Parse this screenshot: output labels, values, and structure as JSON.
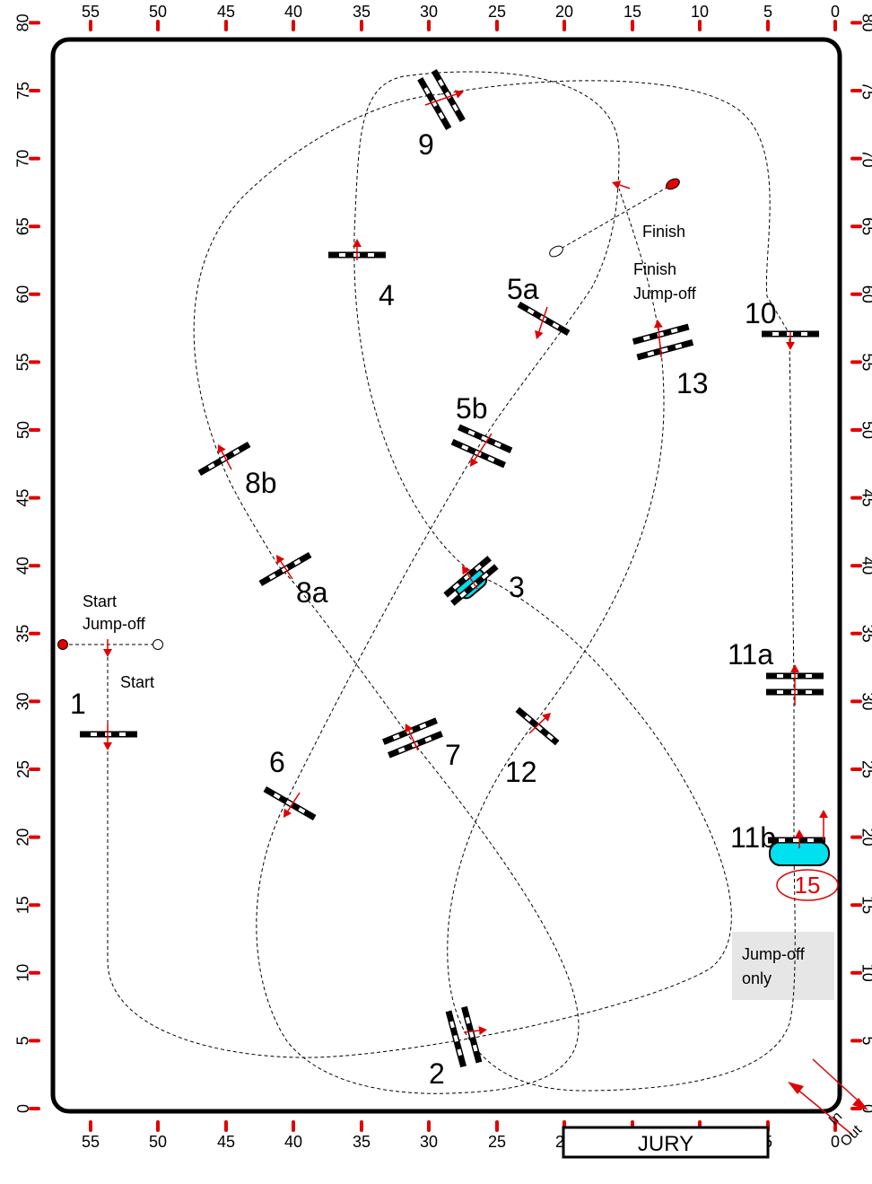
{
  "axes": {
    "x_ticks": [
      "55",
      "50",
      "45",
      "40",
      "35",
      "30",
      "25",
      "20",
      "15",
      "10",
      "5",
      "0"
    ],
    "y_ticks": [
      "0",
      "5",
      "10",
      "15",
      "20",
      "25",
      "30",
      "35",
      "40",
      "45",
      "50",
      "55",
      "60",
      "65",
      "70",
      "75",
      "80"
    ]
  },
  "fences": [
    {
      "id": "1",
      "label": "1"
    },
    {
      "id": "2",
      "label": "2"
    },
    {
      "id": "3",
      "label": "3"
    },
    {
      "id": "4",
      "label": "4"
    },
    {
      "id": "5a",
      "label": "5a"
    },
    {
      "id": "5b",
      "label": "5b"
    },
    {
      "id": "6",
      "label": "6"
    },
    {
      "id": "7",
      "label": "7"
    },
    {
      "id": "8a",
      "label": "8a"
    },
    {
      "id": "8b",
      "label": "8b"
    },
    {
      "id": "9",
      "label": "9"
    },
    {
      "id": "10",
      "label": "10"
    },
    {
      "id": "11a",
      "label": "11a"
    },
    {
      "id": "11b",
      "label": "11b"
    },
    {
      "id": "12",
      "label": "12"
    },
    {
      "id": "13",
      "label": "13"
    }
  ],
  "labels": {
    "start": "Start",
    "start_jumpoff_1": "Start",
    "start_jumpoff_2": "Jump-off",
    "finish": "Finish",
    "finish_jumpoff_1": "Finish",
    "finish_jumpoff_2": "Jump-off",
    "jumpoff_only_1": "Jump-off",
    "jumpoff_only_2": "only",
    "marker_15": "15",
    "in": "In",
    "out": "Out",
    "jury": "JURY"
  },
  "colors": {
    "arrow": "#e00000",
    "water": "#00e0ee",
    "panel": "#e6e6e6"
  }
}
